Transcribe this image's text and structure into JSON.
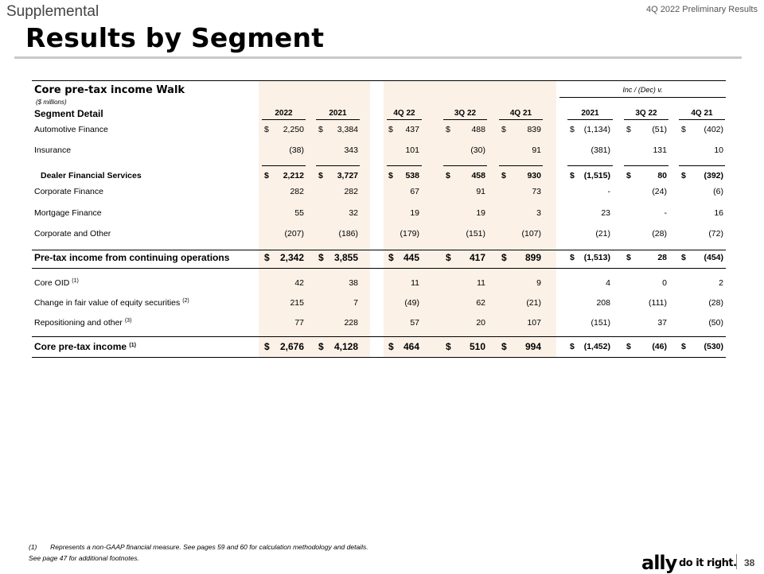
{
  "header": {
    "section": "Supplemental",
    "report": "4Q 2022 Preliminary Results",
    "title": "Results by Segment"
  },
  "table": {
    "title": "Core pre-tax income Walk",
    "units": "($ millions)",
    "segment_label": "Segment Detail",
    "inc_dec_label": "Inc / (Dec) v.",
    "columns": [
      "2022",
      "2021",
      "4Q 22",
      "3Q 22",
      "4Q 21",
      "2021",
      "3Q 22",
      "4Q 21"
    ],
    "rows": [
      {
        "label": "Automotive Finance",
        "sup": "",
        "style": "normal",
        "dollars": [
          "$",
          "$",
          "$",
          "$",
          "$",
          "$",
          "$",
          "$"
        ],
        "values": [
          "2,250",
          "3,384",
          "437",
          "488",
          "839",
          "(1,134)",
          "(51)",
          "(402)"
        ]
      },
      {
        "label": "Insurance",
        "sup": "",
        "style": "normal",
        "dollars": [
          "",
          "",
          "",
          "",
          "",
          "",
          "",
          ""
        ],
        "values": [
          "(38)",
          "343",
          "101",
          "(30)",
          "91",
          "(381)",
          "131",
          "10"
        ]
      },
      {
        "label": "Dealer Financial Services",
        "sup": "",
        "style": "subtotal",
        "dollars": [
          "$",
          "$",
          "$",
          "$",
          "$",
          "$",
          "$",
          "$"
        ],
        "values": [
          "2,212",
          "3,727",
          "538",
          "458",
          "930",
          "(1,515)",
          "80",
          "(392)"
        ]
      },
      {
        "label": "Corporate Finance",
        "sup": "",
        "style": "normal",
        "dollars": [
          "",
          "",
          "",
          "",
          "",
          "",
          "",
          ""
        ],
        "values": [
          "282",
          "282",
          "67",
          "91",
          "73",
          "-",
          "(24)",
          "(6)"
        ]
      },
      {
        "label": "Mortgage Finance",
        "sup": "",
        "style": "normal",
        "dollars": [
          "",
          "",
          "",
          "",
          "",
          "",
          "",
          ""
        ],
        "values": [
          "55",
          "32",
          "19",
          "19",
          "3",
          "23",
          "-",
          "16"
        ]
      },
      {
        "label": "Corporate and Other",
        "sup": "",
        "style": "normal",
        "dollars": [
          "",
          "",
          "",
          "",
          "",
          "",
          "",
          ""
        ],
        "values": [
          "(207)",
          "(186)",
          "(179)",
          "(151)",
          "(107)",
          "(21)",
          "(28)",
          "(72)"
        ]
      },
      {
        "label": "Pre-tax income from continuing operations",
        "sup": "",
        "style": "total",
        "dollars": [
          "$",
          "$",
          "$",
          "$",
          "$",
          "$",
          "$",
          "$"
        ],
        "values": [
          "2,342",
          "3,855",
          "445",
          "417",
          "899",
          "(1,513)",
          "28",
          "(454)"
        ]
      },
      {
        "label": "Core OID",
        "sup": "(1)",
        "style": "normal",
        "dollars": [
          "",
          "",
          "",
          "",
          "",
          "",
          "",
          ""
        ],
        "values": [
          "42",
          "38",
          "11",
          "11",
          "9",
          "4",
          "0",
          "2"
        ]
      },
      {
        "label": "Change in fair value of equity securities",
        "sup": "(2)",
        "style": "normal",
        "dollars": [
          "",
          "",
          "",
          "",
          "",
          "",
          "",
          ""
        ],
        "values": [
          "215",
          "7",
          "(49)",
          "62",
          "(21)",
          "208",
          "(111)",
          "(28)"
        ]
      },
      {
        "label": "Repositioning and other",
        "sup": "(3)",
        "style": "normal",
        "dollars": [
          "",
          "",
          "",
          "",
          "",
          "",
          "",
          ""
        ],
        "values": [
          "77",
          "228",
          "57",
          "20",
          "107",
          "(151)",
          "37",
          "(50)"
        ]
      },
      {
        "label": "Core pre-tax income",
        "sup": "(1)",
        "style": "total",
        "dollars": [
          "$",
          "$",
          "$",
          "$",
          "$",
          "$",
          "$",
          "$"
        ],
        "values": [
          "2,676",
          "4,128",
          "464",
          "510",
          "994",
          "(1,452)",
          "(46)",
          "(530)"
        ]
      }
    ]
  },
  "footnotes": {
    "note1_num": "(1)",
    "note1": "Represents a non-GAAP financial measure. See pages 59 and 60 for calculation methodology and details.",
    "note2": "See page 47 for additional footnotes."
  },
  "footer": {
    "logo": "ally",
    "tagline": "do it right.",
    "page": "38"
  },
  "colors": {
    "shade": "#fbf1e7",
    "top_rule": "#c9c9c9"
  }
}
